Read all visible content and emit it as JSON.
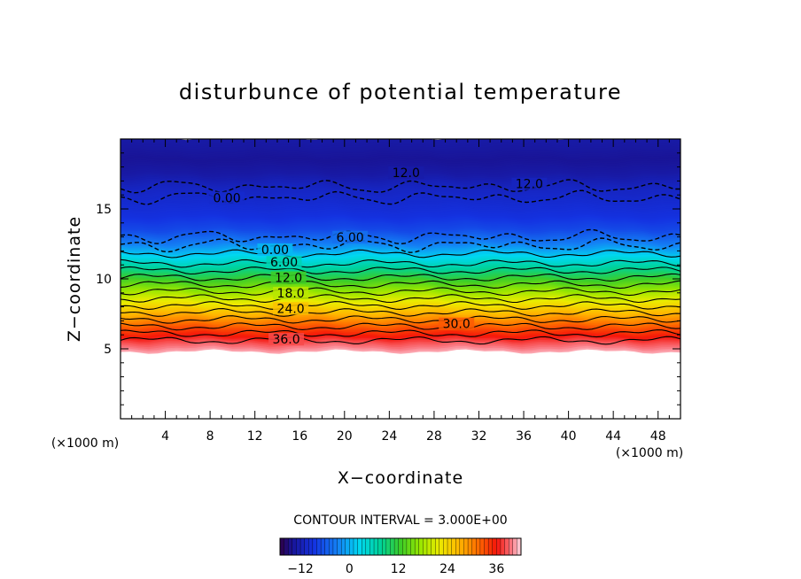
{
  "chart_data": {
    "type": "heatmap",
    "title": "disturbunce of potential temperature",
    "xlabel": "X−coordinate",
    "ylabel": "Z−coordinate",
    "x_unit": "(×1000 m)",
    "y_unit": "(×1000 m)",
    "xlim": [
      0,
      50
    ],
    "ylim": [
      0,
      20
    ],
    "x_ticks": [
      4,
      8,
      12,
      16,
      20,
      24,
      28,
      32,
      36,
      40,
      44,
      48
    ],
    "y_ticks": [
      5,
      10,
      15
    ],
    "x_minor_step": 1,
    "y_minor_step": 1,
    "surface_height": 4.8,
    "field_rows": [
      {
        "z": 4.8,
        "value": 41
      },
      {
        "z": 5.5,
        "value": 38
      },
      {
        "z": 6.5,
        "value": 33
      },
      {
        "z": 7.5,
        "value": 27
      },
      {
        "z": 8.5,
        "value": 21
      },
      {
        "z": 9.5,
        "value": 15
      },
      {
        "z": 10.5,
        "value": 9
      },
      {
        "z": 11.5,
        "value": 3
      },
      {
        "z": 12.5,
        "value": -3
      },
      {
        "z": 13.5,
        "value": -7
      },
      {
        "z": 14.5,
        "value": -9
      },
      {
        "z": 15.5,
        "value": -10
      },
      {
        "z": 16.5,
        "value": -11
      },
      {
        "z": 17.5,
        "value": -13
      },
      {
        "z": 18.5,
        "value": -14
      },
      {
        "z": 19.8,
        "value": -13
      }
    ],
    "contour_levels": [
      -12,
      -9,
      -6,
      -3,
      0,
      3,
      6,
      9,
      12,
      15,
      18,
      21,
      24,
      27,
      30,
      33,
      36
    ],
    "contour_heights": [
      {
        "level": 36,
        "z": 5.6
      },
      {
        "level": 33,
        "z": 6.1
      },
      {
        "level": 30,
        "z": 6.6
      },
      {
        "level": 27,
        "z": 7.1
      },
      {
        "level": 24,
        "z": 7.6
      },
      {
        "level": 21,
        "z": 8.1
      },
      {
        "level": 18,
        "z": 8.6
      },
      {
        "level": 15,
        "z": 9.1
      },
      {
        "level": 12,
        "z": 9.6
      },
      {
        "level": 9,
        "z": 10.1
      },
      {
        "level": 6,
        "z": 10.6
      },
      {
        "level": 3,
        "z": 11.1
      },
      {
        "level": 0,
        "z": 11.8
      },
      {
        "level": -3,
        "z": 12.4
      },
      {
        "level": -6,
        "z": 13.0
      },
      {
        "level": -9,
        "z": 15.8
      },
      {
        "level": -12,
        "z": 16.6
      }
    ],
    "contour_labels": [
      {
        "text": "36.0",
        "x": 14.8,
        "z": 5.5
      },
      {
        "text": "30.0",
        "x": 30.0,
        "z": 6.6
      },
      {
        "text": "24.0",
        "x": 15.2,
        "z": 7.7
      },
      {
        "text": "18.0",
        "x": 15.2,
        "z": 8.8
      },
      {
        "text": "12.0",
        "x": 15.0,
        "z": 9.9
      },
      {
        "text": "6.00",
        "x": 14.6,
        "z": 11.0
      },
      {
        "text": "0.00",
        "x": 13.8,
        "z": 11.9
      },
      {
        "text": "6.00",
        "x": 20.5,
        "z": 12.8
      },
      {
        "text": "12.0",
        "x": 25.5,
        "z": 17.4
      },
      {
        "text": "12.0",
        "x": 36.5,
        "z": 16.6
      },
      {
        "text": "0.00",
        "x": 9.5,
        "z": 15.6
      }
    ],
    "colorbar": {
      "min": -17,
      "max": 42,
      "ticks": [
        -12,
        0,
        12,
        24,
        36
      ],
      "caption": "CONTOUR INTERVAL = 3.000E+00"
    }
  }
}
